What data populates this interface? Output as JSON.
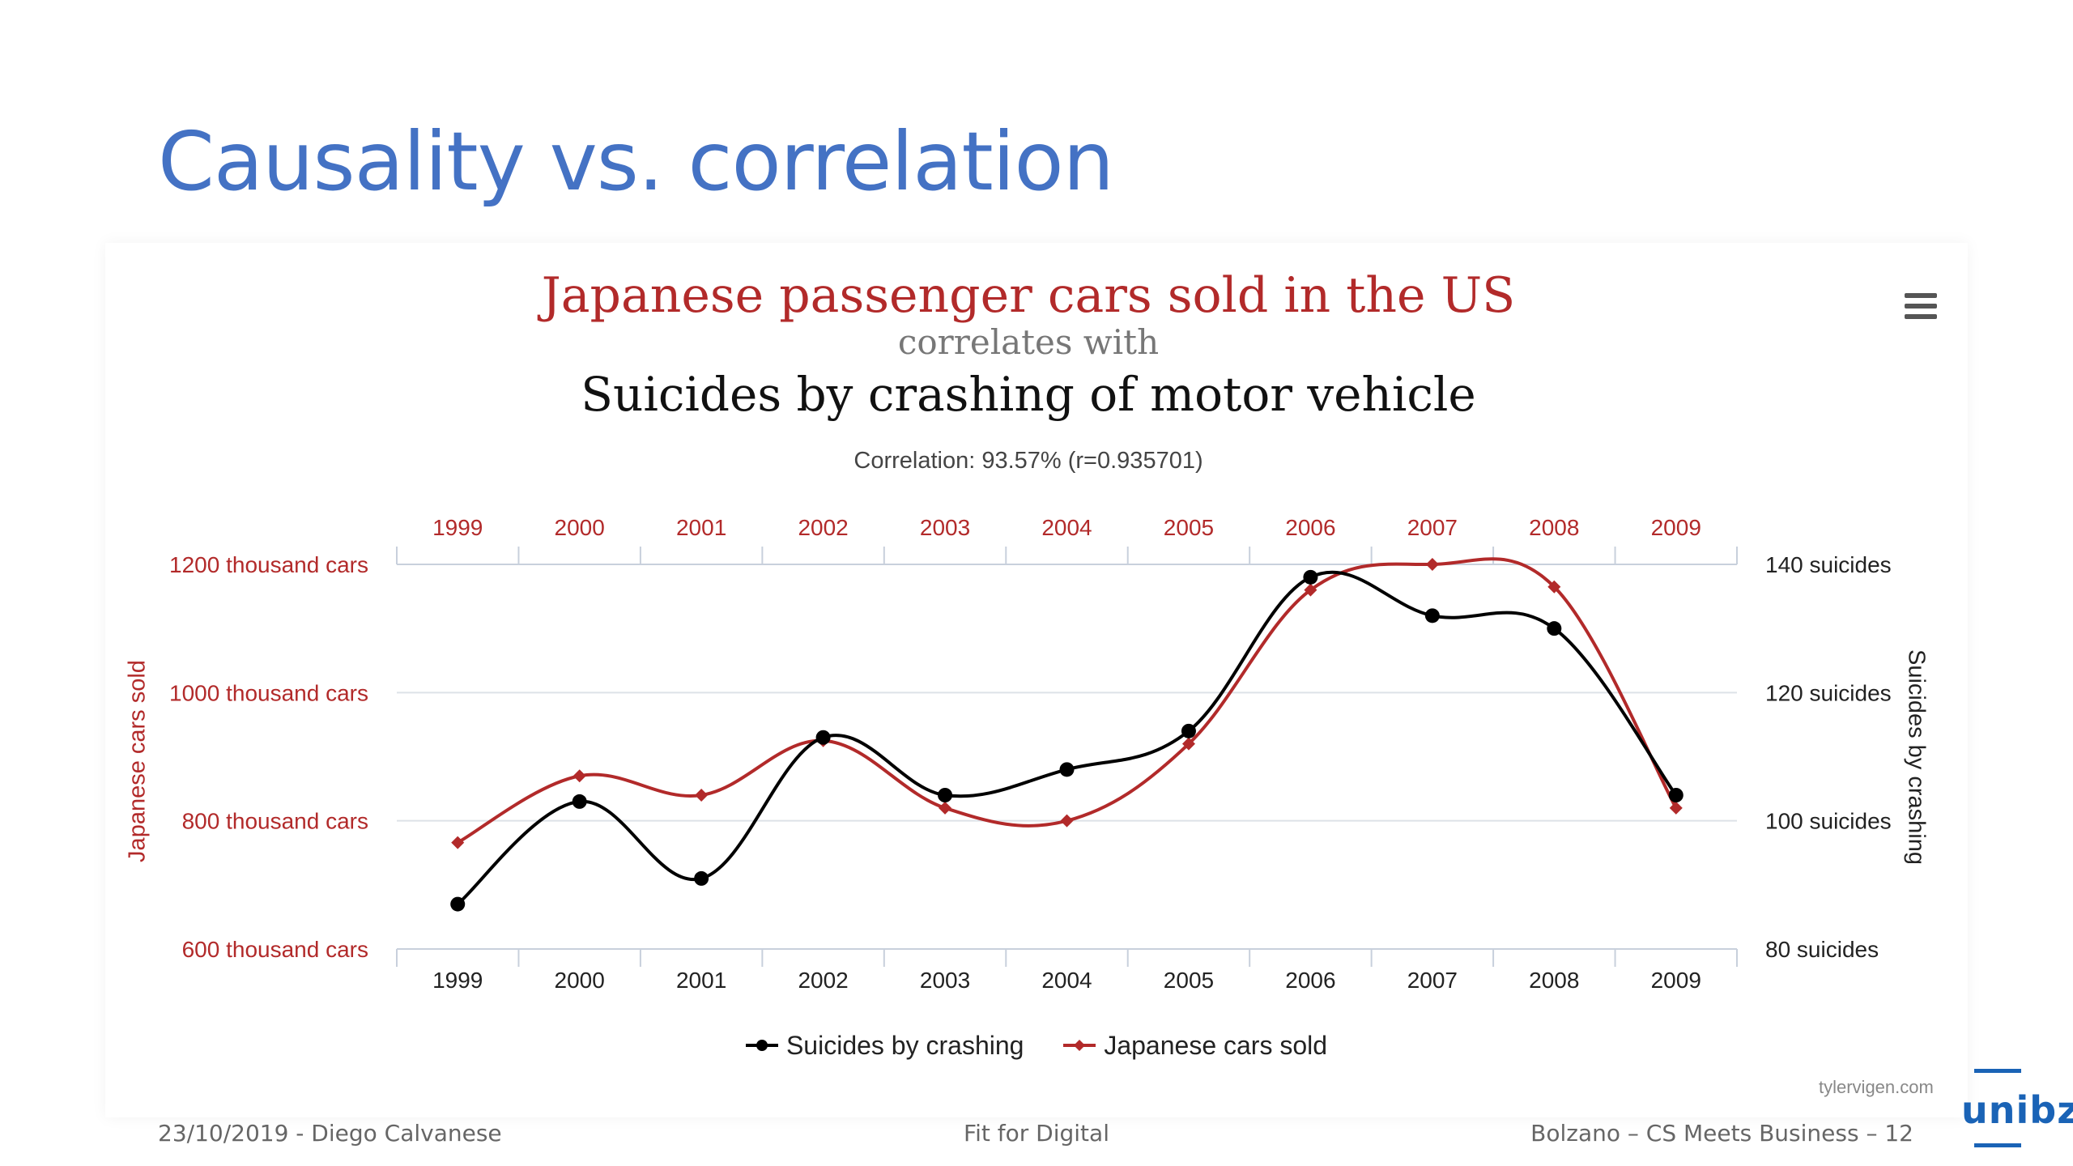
{
  "slide": {
    "title": "Causality vs. correlation",
    "footer_left": "23/10/2019 - Diego Calvanese",
    "footer_center": "Fit for Digital",
    "footer_right": "Bolzano – CS Meets Business – 12",
    "logo_text": "unibz",
    "credit": "tylervigen.com",
    "menu_icon": "hamburger-menu-icon"
  },
  "colors": {
    "title": "#4472c4",
    "cars": "#b22a2a",
    "suicides": "#000000",
    "grid": "#dde2e8",
    "logo": "#1a63b6"
  },
  "chart_data": {
    "type": "line",
    "title": "Japanese passenger cars sold in the US",
    "connector": "correlates with",
    "title2": "Suicides by crashing of motor vehicle",
    "subtitle": "Correlation: 93.57% (r=0.935701)",
    "categories": [
      "1999",
      "2000",
      "2001",
      "2002",
      "2003",
      "2004",
      "2005",
      "2006",
      "2007",
      "2008",
      "2009"
    ],
    "series": [
      {
        "name": "Suicides by crashing",
        "axis": "right",
        "marker": "circle",
        "values": [
          87,
          103,
          91,
          113,
          104,
          108,
          114,
          138,
          132,
          130,
          104
        ]
      },
      {
        "name": "Japanese cars sold",
        "axis": "left",
        "marker": "diamond",
        "values": [
          766,
          870,
          840,
          925,
          820,
          800,
          920,
          1160,
          1200,
          1165,
          820
        ]
      }
    ],
    "y_left": {
      "label": "Japanese cars sold",
      "range": [
        600,
        1200
      ],
      "ticks": [
        {
          "value": 600,
          "label": "600 thousand cars"
        },
        {
          "value": 800,
          "label": "800 thousand cars"
        },
        {
          "value": 1000,
          "label": "1000 thousand cars"
        },
        {
          "value": 1200,
          "label": "1200 thousand cars"
        }
      ]
    },
    "y_right": {
      "label": "Suicides by crashing",
      "range": [
        80,
        140
      ],
      "ticks": [
        {
          "value": 80,
          "label": "80 suicides"
        },
        {
          "value": 100,
          "label": "100 suicides"
        },
        {
          "value": 120,
          "label": "120 suicides"
        },
        {
          "value": 140,
          "label": "140 suicides"
        }
      ]
    },
    "grid": true,
    "legend": "bottom-center"
  }
}
